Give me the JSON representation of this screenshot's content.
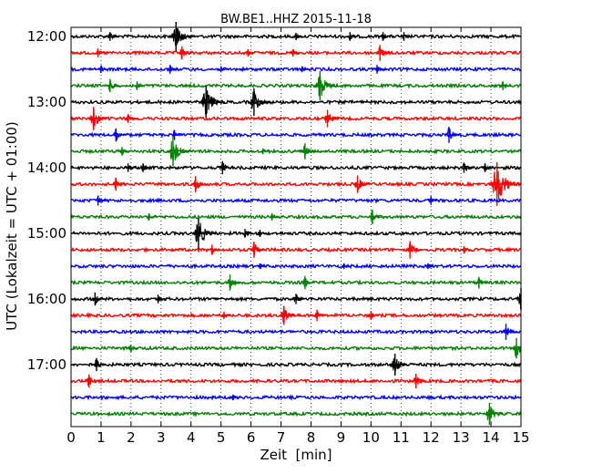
{
  "chart_data": {
    "type": "line",
    "title": "BW.BE1..HHZ 2015-11-18",
    "xlabel": "Zeit  [min]",
    "ylabel": "UTC (Lokalzeit = UTC + 01:00)",
    "xlim": [
      0,
      15
    ],
    "x_ticks": [
      0,
      1,
      2,
      3,
      4,
      5,
      6,
      7,
      8,
      9,
      10,
      11,
      12,
      13,
      14,
      15
    ],
    "x_tick_labels": [
      "0",
      "1",
      "2",
      "3",
      "4",
      "5",
      "6",
      "7",
      "8",
      "9",
      "10",
      "11",
      "12",
      "13",
      "14",
      "15"
    ],
    "y_tick_labels": [
      "12:00",
      "13:00",
      "14:00",
      "15:00",
      "16:00",
      "17:00"
    ],
    "y_tick_rows": [
      0,
      4,
      8,
      12,
      16,
      20
    ],
    "grid": "vertical dotted",
    "traces_per_hour": 4,
    "minutes_per_trace": 15,
    "color_cycle": [
      "#000000",
      "#ff0000",
      "#0000ff",
      "#008000"
    ],
    "traces": [
      {
        "start": "12:00",
        "events": [
          [
            1.3,
            0.3
          ],
          [
            3.5,
            1.0
          ],
          [
            7.5,
            0.25
          ],
          [
            9.3,
            0.3
          ],
          [
            10.4,
            0.3
          ],
          [
            11.1,
            0.3
          ]
        ]
      },
      {
        "start": "12:15",
        "events": [
          [
            0.9,
            0.3
          ],
          [
            3.7,
            0.45
          ],
          [
            5.9,
            0.25
          ],
          [
            7.4,
            0.25
          ],
          [
            10.3,
            0.55
          ]
        ]
      },
      {
        "start": "12:30",
        "events": [
          [
            1.0,
            0.25
          ],
          [
            3.3,
            0.3
          ],
          [
            5.0,
            0.2
          ],
          [
            7.7,
            0.2
          ],
          [
            10.2,
            0.3
          ]
        ]
      },
      {
        "start": "12:45",
        "events": [
          [
            1.3,
            0.45
          ],
          [
            2.2,
            0.3
          ],
          [
            8.3,
            1.0
          ],
          [
            14.4,
            0.3
          ]
        ]
      },
      {
        "start": "13:00",
        "events": [
          [
            4.5,
            1.1
          ],
          [
            6.1,
            0.95
          ]
        ]
      },
      {
        "start": "13:15",
        "events": [
          [
            0.75,
            0.8
          ],
          [
            1.9,
            0.3
          ],
          [
            8.55,
            0.6
          ]
        ]
      },
      {
        "start": "13:30",
        "events": [
          [
            1.5,
            0.45
          ],
          [
            3.45,
            0.35
          ],
          [
            12.6,
            0.55
          ]
        ]
      },
      {
        "start": "13:45",
        "events": [
          [
            1.7,
            0.3
          ],
          [
            3.4,
            1.0
          ],
          [
            6.4,
            0.2
          ],
          [
            7.8,
            0.55
          ]
        ]
      },
      {
        "start": "14:00",
        "events": [
          [
            1.9,
            0.3
          ],
          [
            2.4,
            0.3
          ],
          [
            5.05,
            0.45
          ],
          [
            13.1,
            0.35
          ],
          [
            13.8,
            0.3
          ]
        ]
      },
      {
        "start": "14:15",
        "events": [
          [
            1.5,
            0.45
          ],
          [
            4.15,
            0.55
          ],
          [
            9.55,
            0.6
          ],
          [
            14.2,
            1.5
          ]
        ]
      },
      {
        "start": "14:30",
        "events": [
          [
            0.9,
            0.35
          ],
          [
            12.0,
            0.3
          ]
        ]
      },
      {
        "start": "14:45",
        "events": [
          [
            2.6,
            0.25
          ],
          [
            6.7,
            0.25
          ],
          [
            10.05,
            0.5
          ]
        ]
      },
      {
        "start": "15:00",
        "events": [
          [
            4.25,
            1.05
          ],
          [
            5.8,
            0.3
          ],
          [
            6.3,
            0.25
          ]
        ]
      },
      {
        "start": "15:15",
        "events": [
          [
            4.7,
            0.35
          ],
          [
            6.1,
            0.55
          ],
          [
            11.3,
            0.6
          ],
          [
            13.1,
            0.25
          ]
        ]
      },
      {
        "start": "15:30",
        "events": [
          [
            6.3,
            0.2
          ],
          [
            9.1,
            0.2
          ],
          [
            11.9,
            0.2
          ]
        ]
      },
      {
        "start": "15:45",
        "events": [
          [
            5.3,
            0.55
          ],
          [
            7.8,
            0.45
          ],
          [
            13.6,
            0.4
          ]
        ]
      },
      {
        "start": "16:00",
        "events": [
          [
            0.8,
            0.45
          ],
          [
            2.9,
            0.3
          ],
          [
            7.5,
            0.35
          ],
          [
            15.0,
            0.75
          ]
        ]
      },
      {
        "start": "16:15",
        "events": [
          [
            5.1,
            0.25
          ],
          [
            7.1,
            0.65
          ],
          [
            8.2,
            0.4
          ],
          [
            10.0,
            0.3
          ]
        ]
      },
      {
        "start": "16:30",
        "events": [
          [
            14.5,
            0.55
          ]
        ]
      },
      {
        "start": "16:45",
        "events": [
          [
            2.0,
            0.25
          ],
          [
            14.85,
            0.7
          ]
        ]
      },
      {
        "start": "17:00",
        "events": [
          [
            0.85,
            0.45
          ],
          [
            10.8,
            0.75
          ]
        ]
      },
      {
        "start": "17:15",
        "events": [
          [
            0.6,
            0.45
          ],
          [
            11.5,
            0.5
          ]
        ]
      },
      {
        "start": "17:30",
        "events": [
          [
            5.4,
            0.2
          ]
        ]
      },
      {
        "start": "17:45",
        "events": [
          [
            13.95,
            0.75
          ]
        ]
      }
    ]
  }
}
